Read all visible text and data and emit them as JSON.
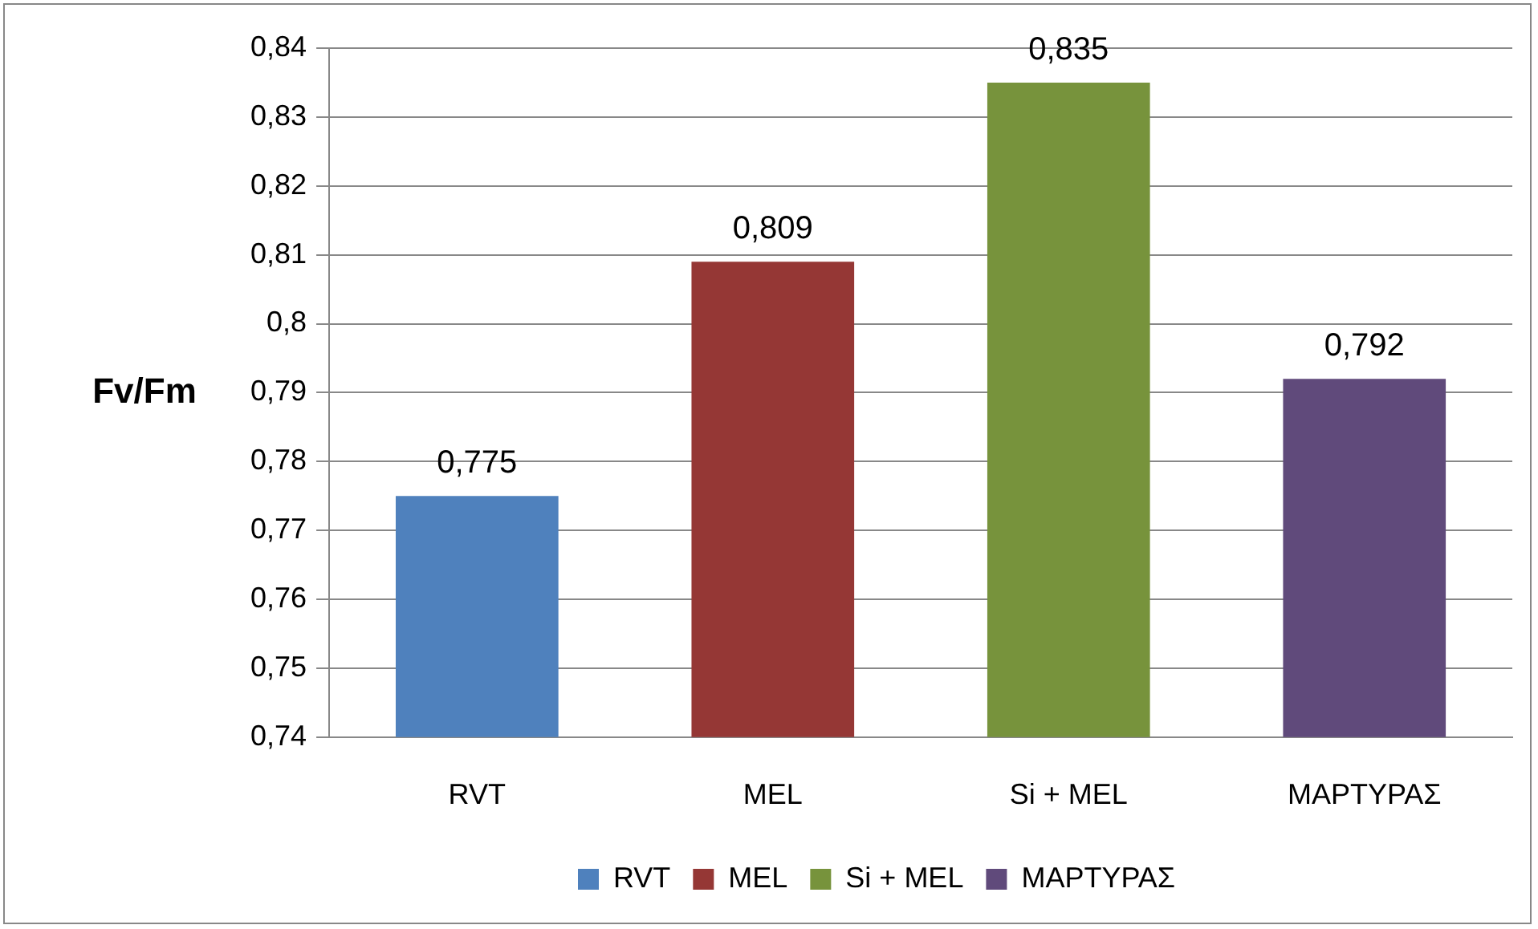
{
  "chart_data": {
    "type": "bar",
    "ylabel": "Fv/Fm",
    "categories": [
      "RVT",
      "MEL",
      "Si + MEL",
      "ΜΑΡΤΥΡΑΣ"
    ],
    "series": [
      {
        "name": "RVT",
        "color": "#4f81bd",
        "values": [
          0.775,
          null,
          null,
          null
        ],
        "value_labels": [
          "0,775",
          null,
          null,
          null
        ]
      },
      {
        "name": "MEL",
        "color": "#953735",
        "values": [
          null,
          0.809,
          null,
          null
        ],
        "value_labels": [
          null,
          "0,809",
          null,
          null
        ]
      },
      {
        "name": "Si + MEL",
        "color": "#77933c",
        "values": [
          null,
          null,
          0.835,
          null
        ],
        "value_labels": [
          null,
          null,
          "0,835",
          null
        ]
      },
      {
        "name": "ΜΑΡΤΥΡΑΣ",
        "color": "#604a7b",
        "values": [
          null,
          null,
          null,
          0.792
        ],
        "value_labels": [
          null,
          null,
          null,
          "0,792"
        ]
      }
    ],
    "ylim": [
      0.74,
      0.84
    ],
    "yticks": [
      {
        "value": 0.74,
        "label": "0,74"
      },
      {
        "value": 0.75,
        "label": "0,75"
      },
      {
        "value": 0.76,
        "label": "0,76"
      },
      {
        "value": 0.77,
        "label": "0,77"
      },
      {
        "value": 0.78,
        "label": "0,78"
      },
      {
        "value": 0.79,
        "label": "0,79"
      },
      {
        "value": 0.8,
        "label": "0,8"
      },
      {
        "value": 0.81,
        "label": "0,81"
      },
      {
        "value": 0.82,
        "label": "0,82"
      },
      {
        "value": 0.83,
        "label": "0,83"
      },
      {
        "value": 0.84,
        "label": "0,84"
      }
    ],
    "grid": "y",
    "legend": "bottom"
  }
}
